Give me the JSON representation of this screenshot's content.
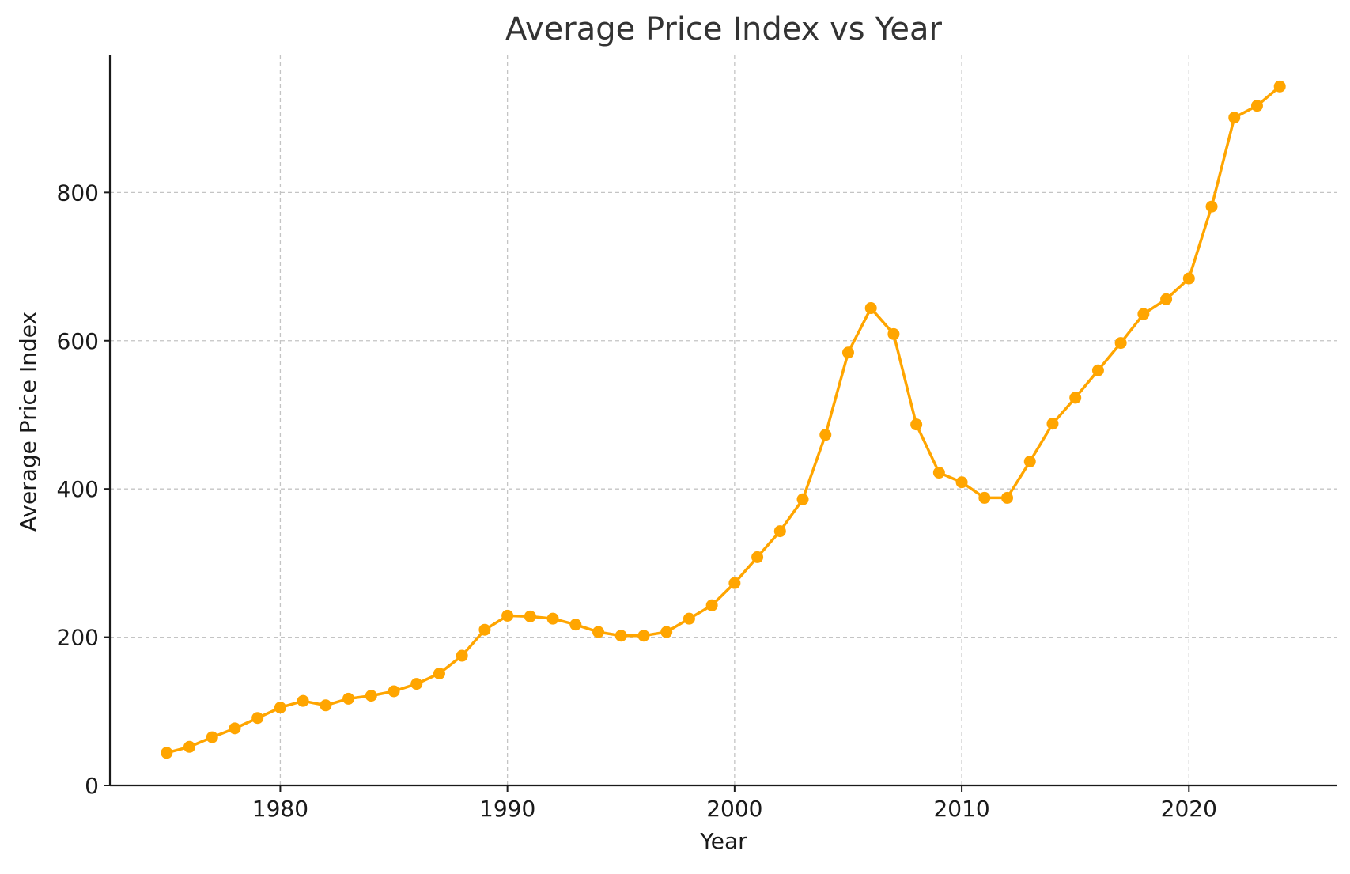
{
  "chart_data": {
    "type": "line",
    "title": "Average Price Index vs Year",
    "xlabel": "Year",
    "ylabel": "Average Price Index",
    "xlim": [
      1972.5,
      2026.5
    ],
    "ylim": [
      0,
      985
    ],
    "xticks": [
      1980,
      1990,
      2000,
      2010,
      2020
    ],
    "yticks": [
      0,
      200,
      400,
      600,
      800
    ],
    "grid": true,
    "series": [
      {
        "color": "#FFA500",
        "marker": "circle",
        "x": [
          1975,
          1976,
          1977,
          1978,
          1979,
          1980,
          1981,
          1982,
          1983,
          1984,
          1985,
          1986,
          1987,
          1988,
          1989,
          1990,
          1991,
          1992,
          1993,
          1994,
          1995,
          1996,
          1997,
          1998,
          1999,
          2000,
          2001,
          2002,
          2003,
          2004,
          2005,
          2006,
          2007,
          2008,
          2009,
          2010,
          2011,
          2012,
          2013,
          2014,
          2015,
          2016,
          2017,
          2018,
          2019,
          2020,
          2021,
          2022,
          2023,
          2024
        ],
        "values": [
          44,
          52,
          65,
          77,
          91,
          105,
          114,
          108,
          117,
          121,
          127,
          137,
          151,
          175,
          210,
          229,
          228,
          225,
          217,
          207,
          202,
          202,
          207,
          225,
          243,
          273,
          308,
          343,
          386,
          473,
          584,
          644,
          609,
          487,
          422,
          409,
          388,
          388,
          437,
          488,
          523,
          560,
          597,
          636,
          656,
          684,
          781,
          901,
          917,
          943
        ]
      }
    ]
  }
}
